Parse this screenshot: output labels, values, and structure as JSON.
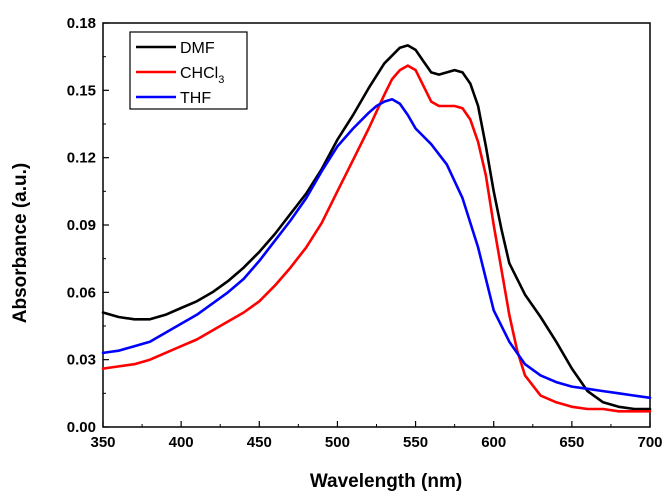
{
  "chart_data": {
    "type": "line",
    "title": "",
    "xlabel": "Wavelength (nm)",
    "ylabel": "Absorbance (a.u.)",
    "xlim": [
      350,
      700
    ],
    "ylim": [
      0,
      0.18
    ],
    "xticks": [
      "350",
      "400",
      "450",
      "500",
      "550",
      "600",
      "650",
      "700"
    ],
    "yticks": [
      "0.00",
      "0.03",
      "0.06",
      "0.09",
      "0.12",
      "0.15",
      "0.18"
    ],
    "grid": false,
    "legend_position": "top-left",
    "series": [
      {
        "name": "DMF",
        "legend_main": "DMF",
        "legend_sub": "",
        "color": "#000000",
        "x": [
          350,
          360,
          370,
          380,
          390,
          400,
          410,
          420,
          430,
          440,
          450,
          460,
          470,
          480,
          490,
          500,
          510,
          520,
          530,
          540,
          545,
          550,
          555,
          560,
          565,
          570,
          575,
          580,
          585,
          590,
          595,
          600,
          605,
          610,
          620,
          630,
          640,
          650,
          660,
          670,
          680,
          690,
          700
        ],
        "y": [
          0.051,
          0.049,
          0.048,
          0.048,
          0.05,
          0.053,
          0.056,
          0.06,
          0.065,
          0.071,
          0.078,
          0.086,
          0.095,
          0.104,
          0.115,
          0.128,
          0.139,
          0.151,
          0.162,
          0.169,
          0.17,
          0.168,
          0.163,
          0.158,
          0.157,
          0.158,
          0.159,
          0.158,
          0.153,
          0.143,
          0.125,
          0.105,
          0.088,
          0.073,
          0.059,
          0.049,
          0.038,
          0.026,
          0.016,
          0.011,
          0.009,
          0.008,
          0.008
        ]
      },
      {
        "name": "CHCl3",
        "legend_main": "CHCl",
        "legend_sub": "3",
        "color": "#ff0000",
        "x": [
          350,
          360,
          370,
          380,
          390,
          400,
          410,
          420,
          430,
          440,
          450,
          460,
          470,
          480,
          490,
          500,
          510,
          520,
          530,
          535,
          540,
          545,
          550,
          555,
          560,
          565,
          570,
          575,
          580,
          585,
          590,
          595,
          600,
          605,
          610,
          615,
          620,
          630,
          640,
          650,
          660,
          670,
          680,
          690,
          700
        ],
        "y": [
          0.026,
          0.027,
          0.028,
          0.03,
          0.033,
          0.036,
          0.039,
          0.043,
          0.047,
          0.051,
          0.056,
          0.063,
          0.071,
          0.08,
          0.091,
          0.105,
          0.119,
          0.133,
          0.148,
          0.155,
          0.159,
          0.161,
          0.159,
          0.152,
          0.145,
          0.143,
          0.143,
          0.143,
          0.142,
          0.137,
          0.127,
          0.112,
          0.09,
          0.07,
          0.05,
          0.034,
          0.023,
          0.014,
          0.011,
          0.009,
          0.008,
          0.008,
          0.007,
          0.007,
          0.007
        ]
      },
      {
        "name": "THF",
        "legend_main": "THF",
        "legend_sub": "",
        "color": "#0000ff",
        "x": [
          350,
          360,
          370,
          380,
          390,
          400,
          410,
          420,
          430,
          440,
          450,
          460,
          470,
          480,
          490,
          500,
          510,
          520,
          525,
          530,
          535,
          540,
          545,
          550,
          560,
          570,
          580,
          590,
          600,
          610,
          620,
          630,
          640,
          650,
          660,
          670,
          680,
          690,
          700
        ],
        "y": [
          0.033,
          0.034,
          0.036,
          0.038,
          0.042,
          0.046,
          0.05,
          0.055,
          0.06,
          0.066,
          0.074,
          0.083,
          0.092,
          0.102,
          0.114,
          0.125,
          0.133,
          0.14,
          0.143,
          0.145,
          0.146,
          0.144,
          0.139,
          0.133,
          0.126,
          0.117,
          0.102,
          0.08,
          0.052,
          0.038,
          0.028,
          0.023,
          0.02,
          0.018,
          0.017,
          0.016,
          0.015,
          0.014,
          0.013
        ]
      }
    ]
  }
}
